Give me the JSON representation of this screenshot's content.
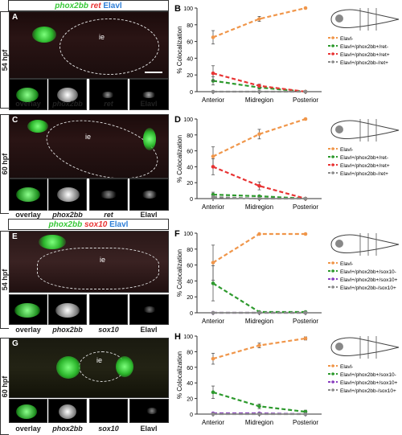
{
  "headers": [
    {
      "g1": "phox2bb",
      "g2": "ret",
      "g3": "Elavl",
      "g2color": "#ff3b3b"
    },
    {
      "g1": "phox2bb",
      "g2": "sox10",
      "g3": "Elavl",
      "g2color": "#ff3b3b"
    }
  ],
  "rows": [
    {
      "letter": "A",
      "stage": "54 hpf",
      "ie": "ie",
      "thumbs": [
        "overlay",
        "phox2bb",
        "ret",
        "Elavl"
      ]
    },
    {
      "letter": "C",
      "stage": "60 hpf",
      "ie": "ie",
      "thumbs": [
        "overlay",
        "phox2bb",
        "ret",
        "Elavl"
      ]
    },
    {
      "letter": "E",
      "stage": "54 hpf",
      "ie": "ie",
      "thumbs": [
        "overlay",
        "phox2bb",
        "sox10",
        "Elavl"
      ]
    },
    {
      "letter": "G",
      "stage": "60 hpf",
      "ie": "ie",
      "thumbs": [
        "overlay",
        "phox2bb",
        "sox10",
        "Elavl"
      ]
    }
  ],
  "chart_data": [
    {
      "panel": "B",
      "type": "line",
      "categories": [
        "Anterior",
        "Midregion",
        "Posterior"
      ],
      "ylabel": "% Colocalization",
      "ylim": [
        0,
        100
      ],
      "yticks": [
        0,
        20,
        40,
        60,
        80,
        100
      ],
      "series": [
        {
          "name": "Elavl-",
          "color": "#f0964a",
          "values": [
            65,
            87,
            100
          ],
          "err": [
            8,
            3,
            0
          ]
        },
        {
          "name": "Elavl+/phox2bb+/ret-",
          "color": "#2e9a2e",
          "values": [
            13,
            5,
            0
          ],
          "err": [
            5,
            2,
            0
          ]
        },
        {
          "name": "Elavl+/phox2bb+/ret+",
          "color": "#e83434",
          "values": [
            22,
            7,
            0
          ],
          "err": [
            9,
            2,
            0
          ]
        },
        {
          "name": "Elavl+/phox2bb-/ret+",
          "color": "#8a8a8a",
          "values": [
            0,
            0,
            0
          ],
          "err": [
            0,
            0,
            0
          ]
        }
      ]
    },
    {
      "panel": "D",
      "type": "line",
      "categories": [
        "Anterior",
        "Midregion",
        "Posterior"
      ],
      "ylabel": "% Colocalization",
      "ylim": [
        0,
        100
      ],
      "yticks": [
        0,
        20,
        40,
        60,
        80,
        100
      ],
      "series": [
        {
          "name": "Elavl-",
          "color": "#f0964a",
          "values": [
            53,
            81,
            100
          ],
          "err": [
            12,
            6,
            0
          ]
        },
        {
          "name": "Elavl+/phox2bb+/ret-",
          "color": "#2e9a2e",
          "values": [
            5,
            3,
            0
          ],
          "err": [
            3,
            1,
            0
          ]
        },
        {
          "name": "Elavl+/phox2bb+/ret+",
          "color": "#e83434",
          "values": [
            40,
            16,
            0
          ],
          "err": [
            10,
            5,
            0
          ]
        },
        {
          "name": "Elavl+/phox2bb-/ret+",
          "color": "#8a8a8a",
          "values": [
            2,
            0,
            0
          ],
          "err": [
            1,
            0,
            0
          ]
        }
      ]
    },
    {
      "panel": "F",
      "type": "line",
      "categories": [
        "Anterior",
        "Midregion",
        "Posterior"
      ],
      "ylabel": "% Colocalization",
      "ylim": [
        0,
        100
      ],
      "yticks": [
        0,
        20,
        40,
        60,
        80,
        100
      ],
      "series": [
        {
          "name": "Elavl-",
          "color": "#f0964a",
          "values": [
            63,
            99,
            99
          ],
          "err": [
            22,
            0,
            0
          ]
        },
        {
          "name": "Elavl+/phox2bb+/sox10-",
          "color": "#2e9a2e",
          "values": [
            37,
            1,
            1
          ],
          "err": [
            22,
            0,
            0
          ]
        },
        {
          "name": "Elavl+/phox2bb+/sox10+",
          "color": "#8a3fc0",
          "values": [
            0,
            0,
            0
          ],
          "err": [
            0,
            0,
            0
          ]
        },
        {
          "name": "Elavl+/phox2bb-/sox10+",
          "color": "#8a8a8a",
          "values": [
            0,
            0,
            0
          ],
          "err": [
            0,
            0,
            0
          ]
        }
      ]
    },
    {
      "panel": "H",
      "type": "line",
      "categories": [
        "Anterior",
        "Midregion",
        "Posterior"
      ],
      "ylabel": "% Colocalization",
      "ylim": [
        0,
        100
      ],
      "yticks": [
        0,
        20,
        40,
        60,
        80,
        100
      ],
      "series": [
        {
          "name": "Elavl-",
          "color": "#f0964a",
          "values": [
            71,
            88,
            97
          ],
          "err": [
            7,
            3,
            2
          ]
        },
        {
          "name": "Elavl+/phox2bb+/sox10-",
          "color": "#2e9a2e",
          "values": [
            28,
            10,
            3
          ],
          "err": [
            8,
            3,
            2
          ]
        },
        {
          "name": "Elavl+/phox2bb+/sox10+",
          "color": "#8a3fc0",
          "values": [
            1,
            1,
            0
          ],
          "err": [
            0,
            0,
            0
          ]
        },
        {
          "name": "Elavl+/phox2bb-/sox10+",
          "color": "#8a8a8a",
          "values": [
            0,
            0,
            0
          ],
          "err": [
            0,
            0,
            0
          ]
        }
      ]
    }
  ]
}
